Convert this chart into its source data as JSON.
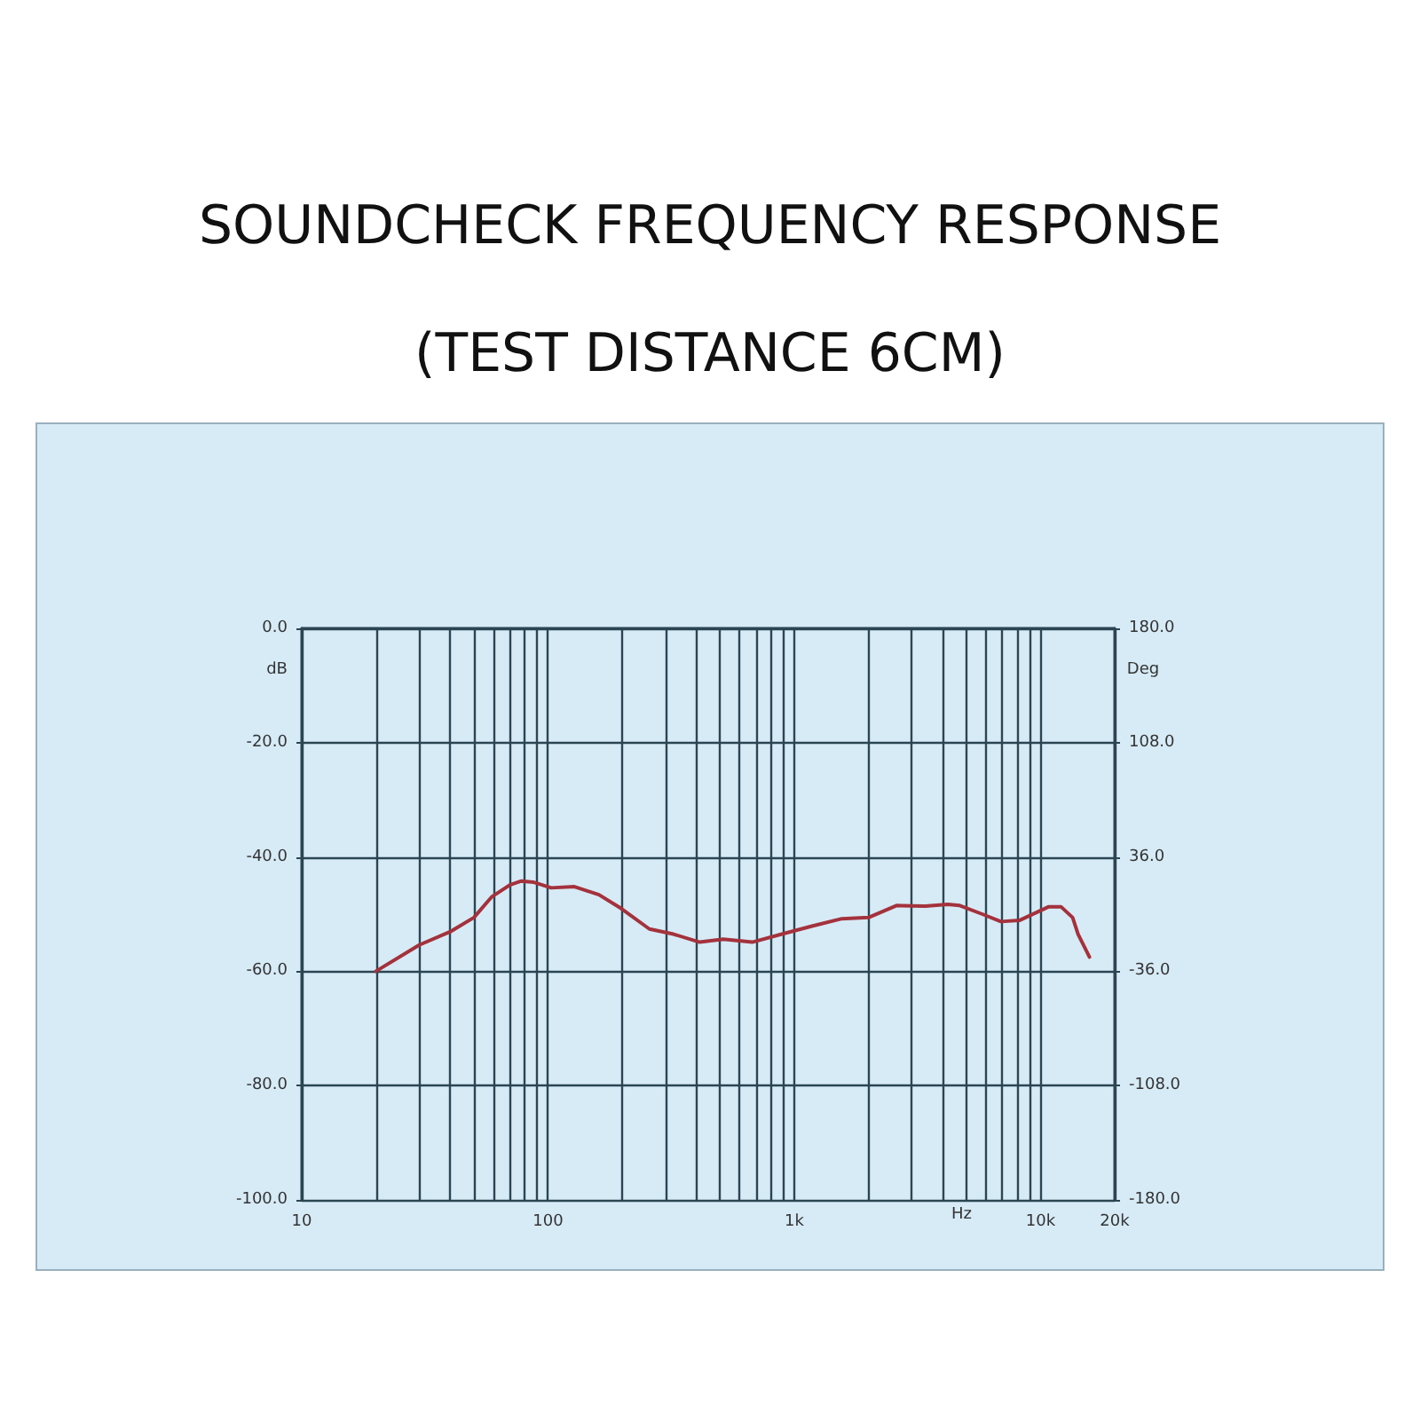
{
  "chart_data": {
    "type": "line",
    "title": "SOUNDCHECK FREQUENCY RESPONSE",
    "subtitle": "(TEST DISTANCE 6CM)",
    "xlabel": "Hz",
    "ylabel": "dB",
    "y2label": "Deg",
    "log": "x",
    "grid": true,
    "xlim": [
      10,
      20000
    ],
    "xticks": [
      10,
      {
        "value": 20,
        "label": null
      },
      {
        "value": 30,
        "label": null
      },
      {
        "value": 40,
        "label": null
      },
      {
        "value": 50,
        "label": null
      },
      {
        "value": 60,
        "label": null
      },
      {
        "value": 70,
        "label": null
      },
      {
        "value": 80,
        "label": null
      },
      {
        "value": 90,
        "label": null
      },
      100,
      {
        "value": 200,
        "label": null
      },
      {
        "value": 300,
        "label": null
      },
      {
        "value": 400,
        "label": null
      },
      {
        "value": 500,
        "label": null
      },
      {
        "value": 600,
        "label": null
      },
      {
        "value": 700,
        "label": null
      },
      {
        "value": 800,
        "label": null
      },
      {
        "value": 900,
        "label": null
      },
      {
        "value": 1000,
        "label": "1k"
      },
      {
        "value": 2000,
        "label": null
      },
      {
        "value": 3000,
        "label": null
      },
      {
        "value": 4000,
        "label": null
      },
      {
        "value": 5000,
        "label": null
      },
      {
        "value": 6000,
        "label": null
      },
      {
        "value": 7000,
        "label": null
      },
      {
        "value": 8000,
        "label": null
      },
      {
        "value": 9000,
        "label": null
      },
      {
        "value": 10000,
        "label": "10k"
      },
      {
        "value": 20000,
        "label": "20k"
      }
    ],
    "ylim": [
      -100,
      0
    ],
    "yticks": [
      {
        "value": -100,
        "label": "-100.0"
      },
      {
        "value": -80,
        "label": "-80.0"
      },
      {
        "value": -60,
        "label": "-60.0"
      },
      {
        "value": -40,
        "label": "-40.0"
      },
      {
        "value": -20,
        "label": "-20.0"
      },
      {
        "value": 0,
        "label": "0.0"
      }
    ],
    "y2lim": [
      -180,
      180
    ],
    "y2ticks": [
      {
        "value": -180,
        "label": "-180.0"
      },
      {
        "value": -108,
        "label": "-108.0"
      },
      {
        "value": -36,
        "label": "-36.0"
      },
      {
        "value": 36,
        "label": "36.0"
      },
      {
        "value": 108,
        "label": "108.0"
      },
      {
        "value": 180,
        "label": "180.0"
      }
    ],
    "series": [
      {
        "color": "#a3323c",
        "x": [
          20,
          30,
          40,
          50,
          59,
          70,
          78,
          87,
          103,
          128,
          161,
          198,
          258,
          323,
          413,
          515,
          675,
          890,
          1180,
          1560,
          2000,
          2600,
          3400,
          4200,
          4700,
          5800,
          6900,
          8200,
          10800,
          12100,
          13500,
          14200,
          15800
        ],
        "values": [
          -60,
          -55.4,
          -53.1,
          -50.6,
          -47,
          -44.9,
          -44.2,
          -44.4,
          -45.4,
          -45.2,
          -46.6,
          -49,
          -52.6,
          -53.5,
          -54.9,
          -54.4,
          -54.9,
          -53.5,
          -52.1,
          -50.8,
          -50.6,
          -48.5,
          -48.6,
          -48.3,
          -48.5,
          -50,
          -51.3,
          -51.1,
          -48.7,
          -48.7,
          -50.6,
          -53.5,
          -57.5
        ]
      }
    ]
  }
}
